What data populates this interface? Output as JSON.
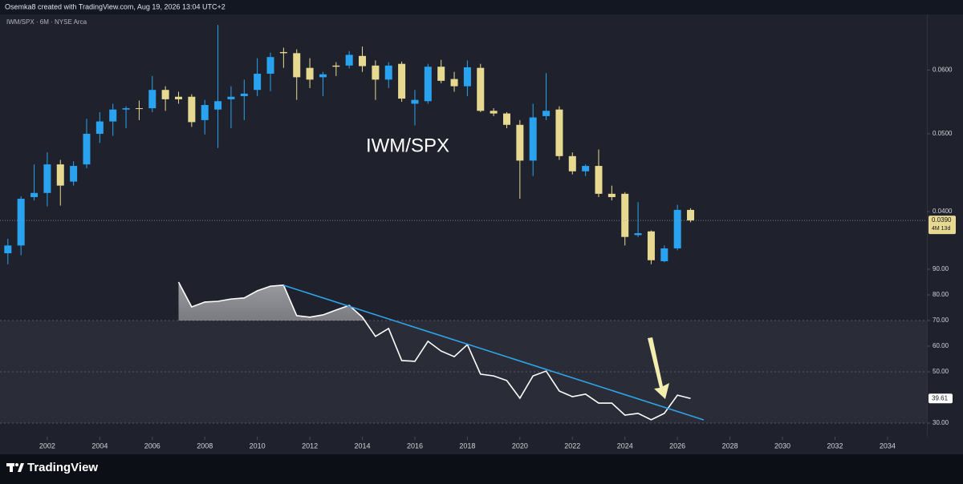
{
  "header": {
    "credit": "Osemka8 created with TradingView.com, Aug 19, 2026 13:04 UTC+2",
    "symbol": "IWM/SPX · 6M · NYSE Arca"
  },
  "chart_data": [
    {
      "type": "candlestick",
      "title": "IWM/SPX",
      "log_scale": true,
      "grid": false,
      "up_color": "#29a3f0",
      "down_color": "#e8d991",
      "x": [
        2000.5,
        2001,
        2001.5,
        2002,
        2002.5,
        2003,
        2003.5,
        2004,
        2004.5,
        2005,
        2005.5,
        2006,
        2006.5,
        2007,
        2007.5,
        2008,
        2008.5,
        2009,
        2009.5,
        2010,
        2010.5,
        2011,
        2011.5,
        2012,
        2012.5,
        2013,
        2013.5,
        2014,
        2014.5,
        2015,
        2015.5,
        2016,
        2016.5,
        2017,
        2017.5,
        2018,
        2018.5,
        2019,
        2019.5,
        2020,
        2020.5,
        2021,
        2021.5,
        2022,
        2022.5,
        2023,
        2023.5,
        2024,
        2024.5,
        2025,
        2025.5,
        2026,
        2026.5
      ],
      "open": [
        0.0355,
        0.0363,
        0.0417,
        0.0422,
        0.0458,
        0.0436,
        0.0458,
        0.05,
        0.0518,
        0.0536,
        0.0538,
        0.0538,
        0.0567,
        0.0556,
        0.0556,
        0.052,
        0.0536,
        0.0552,
        0.0557,
        0.0567,
        0.0594,
        0.0632,
        0.063,
        0.0604,
        0.0588,
        0.0608,
        0.0608,
        0.0625,
        0.0608,
        0.0584,
        0.0611,
        0.0545,
        0.0549,
        0.0606,
        0.0585,
        0.0573,
        0.0604,
        0.0534,
        0.053,
        0.0513,
        0.0463,
        0.0526,
        0.0536,
        0.0469,
        0.0449,
        0.0456,
        0.0421,
        0.0421,
        0.0374,
        0.0378,
        0.0347,
        0.036,
        0.0402
      ],
      "high": [
        0.037,
        0.0418,
        0.0458,
        0.0474,
        0.0464,
        0.0462,
        0.0522,
        0.0532,
        0.0545,
        0.0541,
        0.055,
        0.059,
        0.0573,
        0.0564,
        0.056,
        0.0551,
        0.0683,
        0.0573,
        0.0584,
        0.0621,
        0.0631,
        0.064,
        0.0637,
        0.0621,
        0.0597,
        0.0614,
        0.0634,
        0.0642,
        0.0617,
        0.0614,
        0.0615,
        0.0567,
        0.0611,
        0.0618,
        0.0597,
        0.0617,
        0.0611,
        0.0538,
        0.0532,
        0.052,
        0.0545,
        0.0595,
        0.0541,
        0.0474,
        0.0458,
        0.0478,
        0.0431,
        0.0423,
        0.0411,
        0.0379,
        0.0363,
        0.0408,
        0.0404
      ],
      "low": [
        0.0344,
        0.0353,
        0.0413,
        0.0406,
        0.0407,
        0.0431,
        0.0453,
        0.0487,
        0.0497,
        0.0508,
        0.052,
        0.0532,
        0.0534,
        0.0545,
        0.051,
        0.0499,
        0.048,
        0.0508,
        0.052,
        0.0557,
        0.0565,
        0.0604,
        0.0551,
        0.057,
        0.0557,
        0.059,
        0.0603,
        0.0597,
        0.0551,
        0.057,
        0.0548,
        0.0512,
        0.0545,
        0.0578,
        0.0564,
        0.0557,
        0.0532,
        0.0526,
        0.0508,
        0.0415,
        0.0443,
        0.052,
        0.0464,
        0.0445,
        0.0443,
        0.0417,
        0.0413,
        0.0363,
        0.0372,
        0.0344,
        0.0346,
        0.0358,
        0.0388
      ],
      "close": [
        0.0363,
        0.0415,
        0.0422,
        0.0458,
        0.0431,
        0.0456,
        0.05,
        0.0518,
        0.0536,
        0.0538,
        0.0537,
        0.0567,
        0.0552,
        0.0552,
        0.0517,
        0.0543,
        0.0549,
        0.0556,
        0.0561,
        0.0594,
        0.0623,
        0.063,
        0.0588,
        0.0584,
        0.0593,
        0.0606,
        0.0627,
        0.0607,
        0.0584,
        0.0608,
        0.0553,
        0.0551,
        0.0606,
        0.0582,
        0.0573,
        0.0605,
        0.0534,
        0.053,
        0.0513,
        0.0463,
        0.0524,
        0.0534,
        0.0469,
        0.0449,
        0.0456,
        0.0421,
        0.0417,
        0.0372,
        0.0376,
        0.0348,
        0.036,
        0.0402,
        0.039
      ],
      "last_label": "0.0390",
      "countdown": "4M 13d",
      "xlim": [
        2000.2,
        2035.5
      ],
      "xticks": [
        2002,
        2004,
        2006,
        2008,
        2010,
        2012,
        2014,
        2016,
        2018,
        2020,
        2022,
        2024,
        2026,
        2028,
        2030,
        2032,
        2034
      ],
      "ylim": [
        0.0336,
        0.0704
      ],
      "yticks": [
        {
          "value": 0.06,
          "label": "0.0600"
        },
        {
          "value": 0.05,
          "label": "0.0500"
        },
        {
          "value": 0.04,
          "label": "0.0400"
        }
      ]
    },
    {
      "type": "line",
      "x": [
        2007,
        2007.5,
        2008,
        2008.5,
        2009,
        2009.5,
        2010,
        2010.5,
        2011,
        2011.5,
        2012,
        2012.5,
        2013,
        2013.5,
        2014,
        2014.5,
        2015,
        2015.5,
        2016,
        2016.5,
        2017,
        2017.5,
        2018,
        2018.5,
        2019,
        2019.5,
        2020,
        2020.5,
        2021,
        2021.5,
        2022,
        2022.5,
        2023,
        2023.5,
        2024,
        2024.5,
        2025,
        2025.5,
        2026,
        2026.5
      ],
      "series": [
        {
          "color": "#ffffff",
          "values": [
            85.0,
            75.3,
            77.2,
            77.5,
            78.4,
            78.8,
            81.6,
            83.4,
            83.8,
            71.9,
            71.3,
            72.2,
            74.1,
            75.9,
            71.3,
            63.8,
            66.9,
            54.4,
            54.1,
            61.9,
            58.1,
            55.9,
            60.6,
            49.1,
            48.4,
            46.6,
            39.7,
            48.4,
            50.3,
            42.5,
            40.3,
            41.3,
            37.8,
            37.8,
            33.1,
            33.8,
            31.3,
            33.8,
            40.9,
            39.61
          ]
        }
      ],
      "last_label": "39.61",
      "band": [
        30,
        70
      ],
      "midline": 50,
      "trendline": {
        "color": "#2ea3e6",
        "x": [
          2011,
          2027
        ],
        "y": [
          83.75,
          31.25
        ]
      },
      "ylim": [
        25,
        95
      ],
      "yticks": [
        {
          "value": 90,
          "label": "90.00"
        },
        {
          "value": 80,
          "label": "80.00"
        },
        {
          "value": 70,
          "label": "70.00"
        },
        {
          "value": 60,
          "label": "60.00"
        },
        {
          "value": 50,
          "label": "50.00"
        },
        {
          "value": 30,
          "label": "30.00"
        }
      ]
    }
  ],
  "footer": {
    "brand": "TradingView"
  }
}
